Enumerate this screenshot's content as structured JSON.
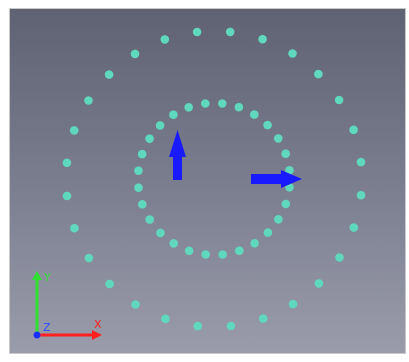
{
  "viewport": {
    "background_top": "#5f6273",
    "background_bottom": "#9a9cab"
  },
  "scene": {
    "point_color": "#5fd8bd",
    "arrow_color": "#1a1aff",
    "inner_ring_points": 28,
    "outer_ring_points": 28
  },
  "axes": {
    "x": {
      "label": "X",
      "color": "#ff2020"
    },
    "y": {
      "label": "Y",
      "color": "#30e030"
    },
    "z": {
      "label": "Z",
      "color": "#2a4cff"
    }
  }
}
